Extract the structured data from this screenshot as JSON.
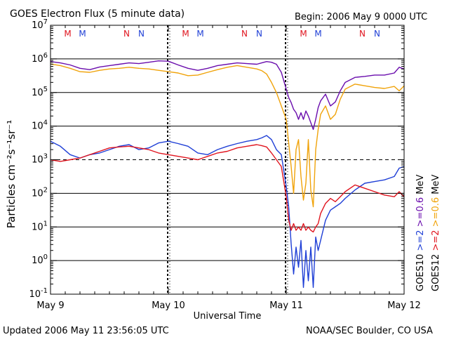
{
  "title": "GOES Electron Flux (5 minute data)",
  "begin_label": "Begin: 2006 May 9 0000 UTC",
  "updated_label": "Updated 2006 May 11 23:56:05 UTC",
  "credit_label": "NOAA/SEC Boulder, CO USA",
  "colors": {
    "goes10_ge2": "#1f3fd6",
    "goes10_ge06": "#6a0dad",
    "goes12_ge2": "#e0141e",
    "goes12_ge06": "#f0a30a",
    "axis": "#000000"
  },
  "chart_data": {
    "type": "line",
    "title": "GOES Electron Flux (5 minute data)",
    "xlabel": "Universal Time",
    "ylabel": "Particles cm⁻²s⁻¹sr⁻¹",
    "x_unit": "hours since 2006 May 9 0000 UTC",
    "xlim": [
      0,
      72
    ],
    "x_ticks": [
      {
        "x": 0,
        "label": "May 9"
      },
      {
        "x": 24,
        "label": "May 10"
      },
      {
        "x": 48,
        "label": "May 11"
      },
      {
        "x": 72,
        "label": "May 12"
      }
    ],
    "y_scale": "log",
    "ylim_exponent": [
      -1,
      7
    ],
    "y_ticks": [
      {
        "exp": -1,
        "label": "10-1"
      },
      {
        "exp": 0,
        "label": "100"
      },
      {
        "exp": 1,
        "label": "101"
      },
      {
        "exp": 2,
        "label": "102"
      },
      {
        "exp": 3,
        "label": "103"
      },
      {
        "exp": 4,
        "label": "104"
      },
      {
        "exp": 5,
        "label": "105"
      },
      {
        "exp": 6,
        "label": "106"
      },
      {
        "exp": 7,
        "label": "107"
      }
    ],
    "reference_lines": [
      {
        "exp": 6,
        "style": "solid"
      },
      {
        "exp": 5,
        "style": "solid"
      },
      {
        "exp": 4,
        "style": "solid"
      },
      {
        "exp": 3,
        "style": "dashed"
      },
      {
        "exp": 2,
        "style": "solid"
      },
      {
        "exp": 1,
        "style": "solid"
      },
      {
        "exp": 0,
        "style": "solid"
      }
    ],
    "legend": {
      "position": "right",
      "satellites": [
        {
          "name": "GOES10",
          "ge2_label": ">=2",
          "ge06_label": ">=0.6",
          "ge2_color": "#1f3fd6",
          "ge06_color": "#6a0dad"
        },
        {
          "name": "GOES12",
          "ge2_label": ">=2",
          "ge06_label": ">=0.6",
          "ge2_color": "#e0141e",
          "ge06_color": "#f0a30a"
        }
      ],
      "unit": "MeV"
    },
    "mn_markers": [
      {
        "x": 3.5,
        "label": "M",
        "color": "#e0141e"
      },
      {
        "x": 6.5,
        "label": "M",
        "color": "#1f3fd6"
      },
      {
        "x": 15.5,
        "label": "N",
        "color": "#e0141e"
      },
      {
        "x": 18.5,
        "label": "N",
        "color": "#1f3fd6"
      },
      {
        "x": 27.5,
        "label": "M",
        "color": "#e0141e"
      },
      {
        "x": 30.5,
        "label": "M",
        "color": "#1f3fd6"
      },
      {
        "x": 39.5,
        "label": "N",
        "color": "#e0141e"
      },
      {
        "x": 42.5,
        "label": "N",
        "color": "#1f3fd6"
      },
      {
        "x": 51.5,
        "label": "M",
        "color": "#e0141e"
      },
      {
        "x": 54.5,
        "label": "M",
        "color": "#1f3fd6"
      },
      {
        "x": 63.5,
        "label": "N",
        "color": "#e0141e"
      },
      {
        "x": 66.5,
        "label": "N",
        "color": "#1f3fd6"
      }
    ],
    "series": [
      {
        "name": "GOES10 >=0.6 MeV",
        "color": "#6a0dad",
        "x": [
          0,
          2,
          4,
          6,
          8,
          10,
          12,
          14,
          16,
          18,
          20,
          22,
          24,
          26,
          28,
          30,
          32,
          34,
          36,
          38,
          40,
          42,
          43,
          44,
          45,
          46,
          47,
          48,
          48.5,
          49,
          49.5,
          50,
          50.5,
          51,
          51.5,
          52,
          52.5,
          53,
          53.5,
          54,
          54.5,
          55,
          56,
          57,
          58,
          59,
          60,
          62,
          64,
          66,
          68,
          70,
          71,
          72
        ],
        "log10_values": [
          5.92,
          5.88,
          5.82,
          5.72,
          5.68,
          5.76,
          5.8,
          5.84,
          5.88,
          5.86,
          5.9,
          5.94,
          5.93,
          5.82,
          5.72,
          5.66,
          5.72,
          5.8,
          5.84,
          5.88,
          5.86,
          5.84,
          5.88,
          5.92,
          5.9,
          5.84,
          5.6,
          5.1,
          4.85,
          4.7,
          4.5,
          4.4,
          4.2,
          4.4,
          4.2,
          4.45,
          4.3,
          4.1,
          3.9,
          4.2,
          4.55,
          4.75,
          4.95,
          4.6,
          4.72,
          5.05,
          5.3,
          5.45,
          5.48,
          5.52,
          5.52,
          5.58,
          5.75,
          5.7
        ]
      },
      {
        "name": "GOES12 >=0.6 MeV",
        "color": "#f0a30a",
        "x": [
          0,
          2,
          4,
          6,
          8,
          10,
          12,
          14,
          16,
          18,
          20,
          22,
          24,
          26,
          28,
          30,
          32,
          34,
          36,
          38,
          40,
          42,
          43,
          44,
          45,
          46,
          47,
          48,
          48.5,
          49,
          49.5,
          50,
          50.5,
          51,
          51.5,
          52,
          52.5,
          53,
          53.5,
          54,
          54.5,
          55,
          56,
          57,
          58,
          59,
          60,
          62,
          64,
          66,
          68,
          70,
          71,
          72
        ],
        "log10_values": [
          5.85,
          5.8,
          5.72,
          5.62,
          5.6,
          5.66,
          5.7,
          5.72,
          5.75,
          5.72,
          5.7,
          5.66,
          5.62,
          5.58,
          5.5,
          5.52,
          5.6,
          5.68,
          5.75,
          5.8,
          5.75,
          5.7,
          5.65,
          5.55,
          5.3,
          5.0,
          4.6,
          4.2,
          3.5,
          2.8,
          2.0,
          3.3,
          3.6,
          2.5,
          1.8,
          2.3,
          3.6,
          2.1,
          1.6,
          3.3,
          3.9,
          4.35,
          4.6,
          4.2,
          4.35,
          4.8,
          5.1,
          5.25,
          5.2,
          5.15,
          5.12,
          5.18,
          5.05,
          5.2
        ]
      },
      {
        "name": "GOES10 >=2 MeV",
        "color": "#1f3fd6",
        "x": [
          0,
          2,
          4,
          6,
          8,
          10,
          12,
          14,
          16,
          18,
          20,
          22,
          24,
          26,
          28,
          30,
          32,
          34,
          36,
          38,
          40,
          42,
          43,
          44,
          45,
          46,
          47,
          48,
          48.5,
          49,
          49.5,
          50,
          50.5,
          51,
          51.5,
          52,
          52.5,
          53,
          53.5,
          54,
          54.5,
          55,
          56,
          57,
          58,
          59,
          60,
          62,
          64,
          66,
          68,
          70,
          71,
          72
        ],
        "log10_values": [
          3.55,
          3.4,
          3.15,
          3.05,
          3.15,
          3.2,
          3.3,
          3.4,
          3.45,
          3.3,
          3.35,
          3.5,
          3.55,
          3.48,
          3.4,
          3.2,
          3.15,
          3.3,
          3.4,
          3.48,
          3.55,
          3.6,
          3.65,
          3.72,
          3.6,
          3.3,
          3.15,
          2.2,
          1.6,
          0.5,
          -0.4,
          0.4,
          -0.2,
          0.6,
          -0.8,
          0.3,
          -0.6,
          0.4,
          -0.8,
          0.7,
          0.3,
          0.6,
          1.2,
          1.5,
          1.6,
          1.7,
          1.85,
          2.1,
          2.3,
          2.35,
          2.4,
          2.5,
          2.75,
          2.8
        ]
      },
      {
        "name": "GOES12 >=2 MeV",
        "color": "#e0141e",
        "x": [
          0,
          2,
          4,
          6,
          8,
          10,
          12,
          14,
          16,
          18,
          20,
          22,
          24,
          26,
          28,
          30,
          32,
          34,
          36,
          38,
          40,
          42,
          43,
          44,
          45,
          46,
          47,
          48,
          48.5,
          49,
          49.5,
          50,
          50.5,
          51,
          51.5,
          52,
          52.5,
          53,
          53.5,
          54,
          54.5,
          55,
          56,
          57,
          58,
          59,
          60,
          62,
          64,
          66,
          68,
          70,
          71,
          72
        ],
        "log10_values": [
          3.0,
          2.95,
          3.0,
          3.05,
          3.15,
          3.25,
          3.35,
          3.38,
          3.4,
          3.35,
          3.3,
          3.2,
          3.15,
          3.1,
          3.05,
          3.0,
          3.1,
          3.2,
          3.25,
          3.35,
          3.4,
          3.45,
          3.42,
          3.38,
          3.2,
          3.0,
          2.8,
          1.9,
          1.2,
          0.9,
          1.1,
          0.9,
          1.0,
          0.9,
          1.1,
          0.9,
          1.0,
          0.9,
          0.85,
          1.0,
          1.1,
          1.4,
          1.7,
          1.85,
          1.75,
          1.9,
          2.05,
          2.25,
          2.15,
          2.05,
          1.95,
          1.9,
          2.05,
          1.9
        ]
      }
    ]
  }
}
